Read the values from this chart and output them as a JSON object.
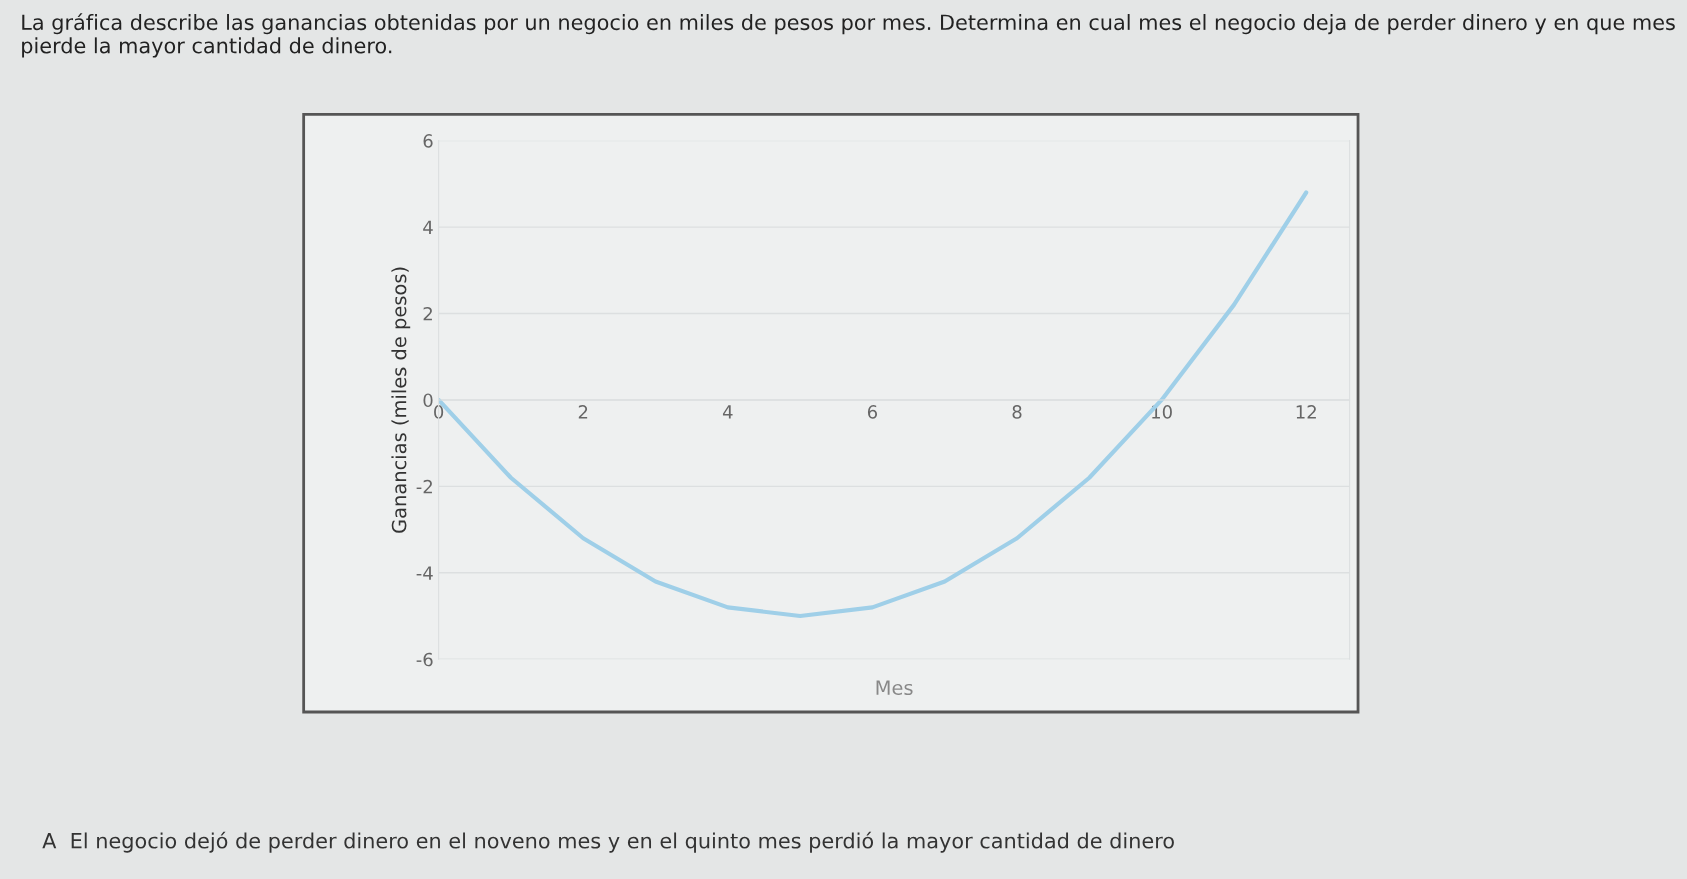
{
  "chart_data": {
    "type": "line",
    "title": "La gráfica describe las ganancias obtenidas por un negocio en miles de pesos por mes. Determina en cual mes el negocio deja de perder dinero y en que mes pierde la mayor cantidad de dinero.",
    "xlabel": "Mes",
    "ylabel": "Ganancias (miles de pesos)",
    "x": [
      0,
      1,
      2,
      3,
      4,
      5,
      6,
      7,
      8,
      9,
      10,
      11,
      12
    ],
    "series": [
      {
        "color": "#9fcfe8",
        "values": [
          0,
          -1.8,
          -3.2,
          -4.2,
          -4.8,
          -5,
          -4.8,
          -4.2,
          -3.2,
          -1.8,
          0,
          2.2,
          4.8
        ]
      }
    ],
    "xlim": [
      0,
      12.6
    ],
    "xticks": [
      0,
      2,
      4,
      6,
      8,
      10,
      12
    ],
    "ylim": [
      -6,
      6
    ],
    "yticks": [
      -6,
      -4,
      -2,
      0,
      2,
      4,
      6
    ],
    "grid": "y",
    "marker": "none",
    "line_style": "solid",
    "annotations": [
      "A  El negocio dejó de perder dinero en el noveno mes y en el quinto mes perdió la mayor cantidad de dinero"
    ]
  }
}
